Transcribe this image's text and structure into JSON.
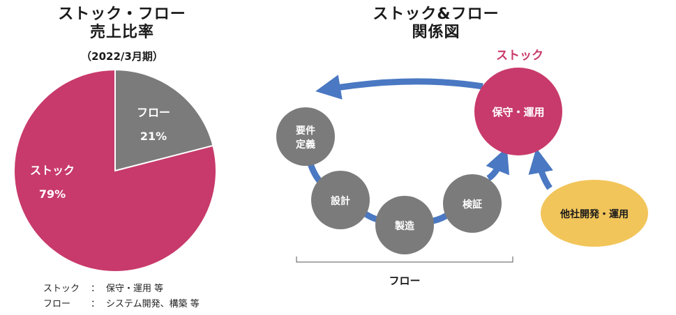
{
  "left": {
    "title_line1": "ストック・フロー",
    "title_line2": "売上比率",
    "period": "（2022/3月期）",
    "notes": [
      {
        "key": "ストック",
        "colon": "：",
        "value": "保守・運用 等"
      },
      {
        "key": "フロー",
        "colon": "：",
        "value": "システム開発、構築 等"
      }
    ]
  },
  "chart_data": {
    "type": "pie",
    "slices": [
      {
        "label": "ストック",
        "value": 79,
        "display": "79%",
        "color": "#c83a6b"
      },
      {
        "label": "フロー",
        "value": 21,
        "display": "21%",
        "color": "#7b7b7b"
      }
    ]
  },
  "right": {
    "title_line1": "ストック&フロー",
    "title_line2": "関係図",
    "stock_label": "ストック",
    "stock_circle": "保守・運用",
    "steps": {
      "requirements_l1": "要件",
      "requirements_l2": "定義",
      "design": "設計",
      "manufacturing": "製造",
      "verification": "検証"
    },
    "other_company": "他社開発・運用",
    "flow_label": "フロー",
    "colors": {
      "stock": "#c83a6b",
      "step": "#7b7b7b",
      "arrow": "#4a78c2",
      "other": "#f2c55a"
    }
  }
}
